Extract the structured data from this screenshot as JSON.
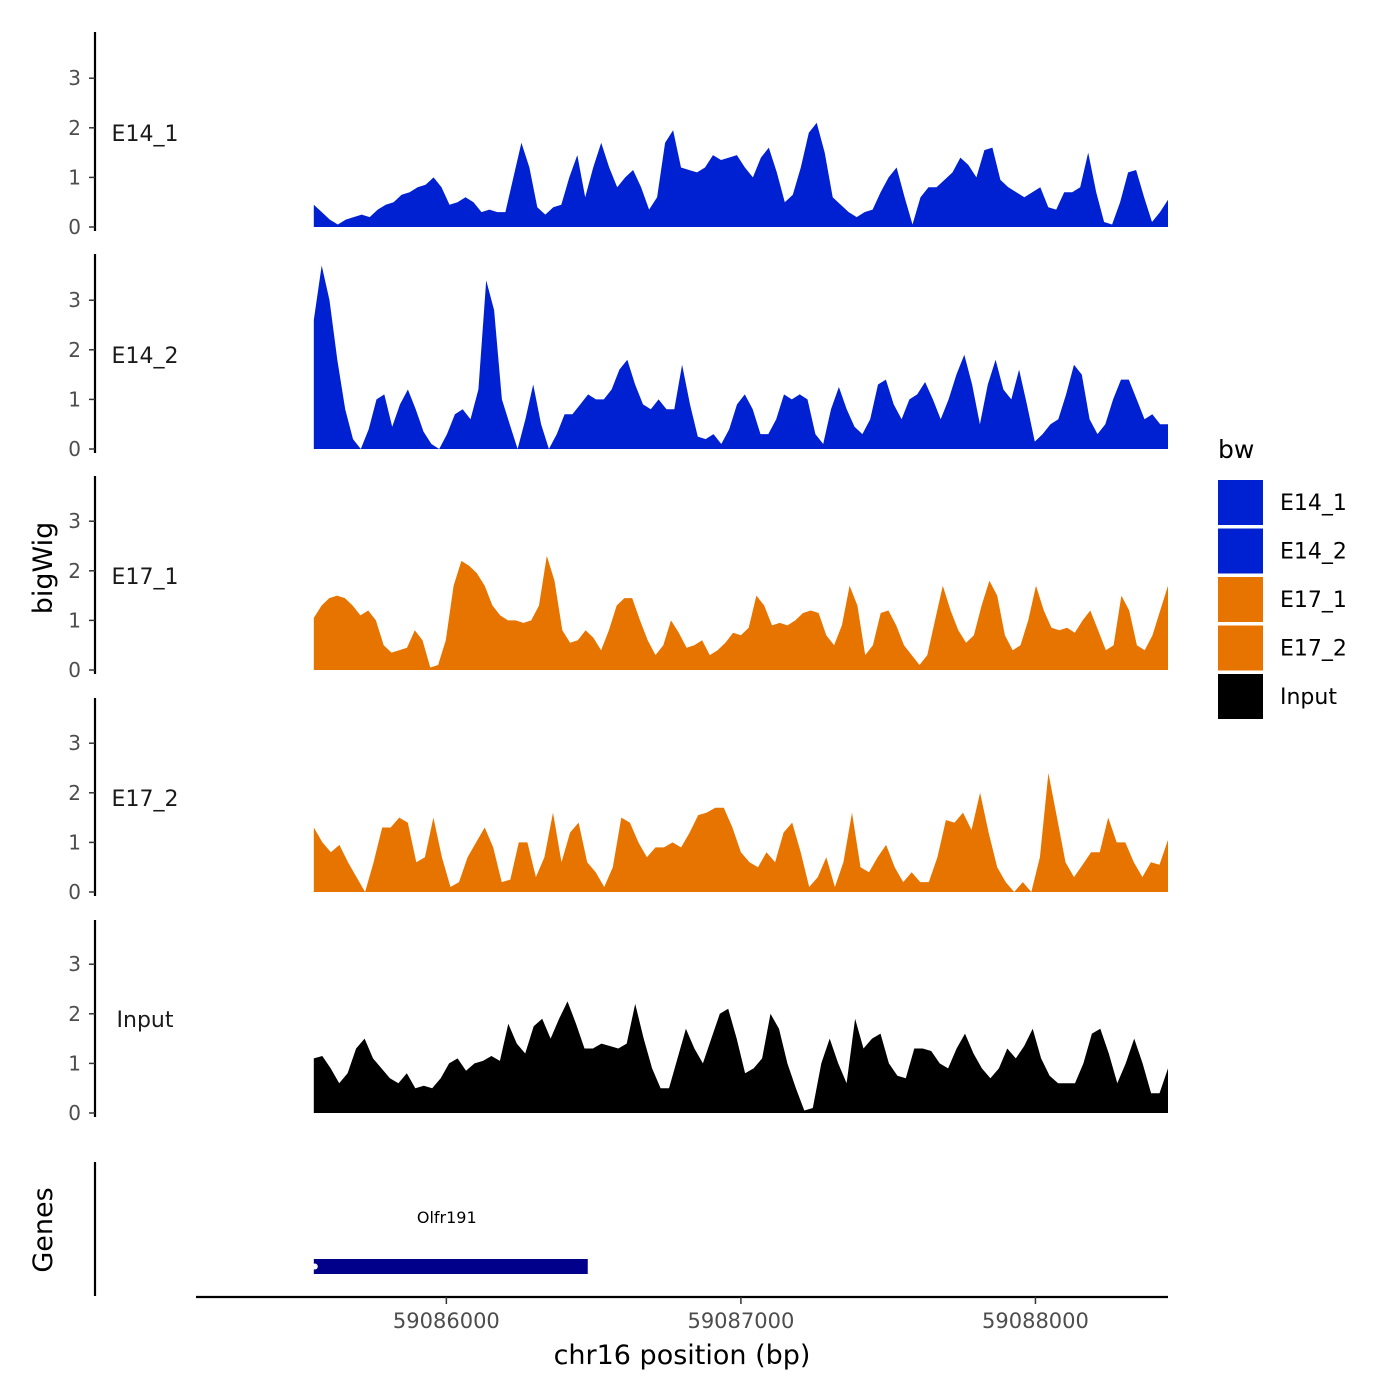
{
  "chart_data": {
    "type": "area",
    "title": "",
    "ylabel": "bigWig",
    "xlabel": "chr16 position (bp)",
    "x_range": [
      59085550,
      59088450
    ],
    "xlim": [
      59085150,
      59088450
    ],
    "ylim": [
      0,
      3.9
    ],
    "y_ticks": [
      "0",
      "1",
      "2",
      "3"
    ],
    "x_ticks": [
      {
        "value": 59086000,
        "label": "59086000"
      },
      {
        "value": 59087000,
        "label": "59087000"
      },
      {
        "value": 59088000,
        "label": "59088000"
      }
    ],
    "legend": {
      "title": "bw",
      "position": "right",
      "entries": [
        {
          "label": "E14_1",
          "color": "#0021d1"
        },
        {
          "label": "E14_2",
          "color": "#0021d1"
        },
        {
          "label": "E17_1",
          "color": "#e87400"
        },
        {
          "label": "E17_2",
          "color": "#e87400"
        },
        {
          "label": "Input",
          "color": "#000000"
        }
      ]
    },
    "series": [
      {
        "name": "E14_1",
        "color": "#0021d1",
        "values": [
          0.45,
          0.3,
          0.15,
          0.05,
          0.15,
          0.2,
          0.25,
          0.2,
          0.35,
          0.45,
          0.5,
          0.65,
          0.7,
          0.8,
          0.85,
          1.0,
          0.8,
          0.45,
          0.5,
          0.6,
          0.5,
          0.3,
          0.35,
          0.3,
          0.3,
          1.0,
          1.7,
          1.2,
          0.4,
          0.25,
          0.4,
          0.45,
          1.0,
          1.45,
          0.6,
          1.2,
          1.7,
          1.2,
          0.8,
          1.0,
          1.15,
          0.8,
          0.35,
          0.6,
          1.7,
          1.95,
          1.2,
          1.15,
          1.1,
          1.2,
          1.45,
          1.35,
          1.4,
          1.45,
          1.2,
          1.0,
          1.4,
          1.6,
          1.1,
          0.5,
          0.65,
          1.2,
          1.9,
          2.1,
          1.5,
          0.6,
          0.45,
          0.3,
          0.2,
          0.3,
          0.35,
          0.7,
          1.0,
          1.2,
          0.6,
          0.05,
          0.6,
          0.8,
          0.8,
          0.95,
          1.1,
          1.4,
          1.25,
          1.0,
          1.55,
          1.6,
          0.95,
          0.8,
          0.7,
          0.6,
          0.7,
          0.8,
          0.4,
          0.35,
          0.7,
          0.7,
          0.8,
          1.5,
          0.7,
          0.1,
          0.05,
          0.5,
          1.1,
          1.15,
          0.6,
          0.1,
          0.3,
          0.55
        ]
      },
      {
        "name": "E14_2",
        "color": "#0021d1",
        "values": [
          2.6,
          3.7,
          3.0,
          1.8,
          0.8,
          0.2,
          0.0,
          0.4,
          1.0,
          1.1,
          0.45,
          0.9,
          1.2,
          0.8,
          0.35,
          0.1,
          0.0,
          0.3,
          0.7,
          0.8,
          0.6,
          1.2,
          3.4,
          2.8,
          1.0,
          0.5,
          0.0,
          0.6,
          1.3,
          0.5,
          0.0,
          0.3,
          0.7,
          0.7,
          0.9,
          1.1,
          1.0,
          1.0,
          1.2,
          1.6,
          1.8,
          1.3,
          0.9,
          0.8,
          1.0,
          0.8,
          0.8,
          1.7,
          0.9,
          0.25,
          0.2,
          0.3,
          0.1,
          0.4,
          0.9,
          1.1,
          0.8,
          0.3,
          0.3,
          0.6,
          1.1,
          1.0,
          1.1,
          1.0,
          0.3,
          0.1,
          0.8,
          1.25,
          0.8,
          0.45,
          0.3,
          0.6,
          1.3,
          1.4,
          0.9,
          0.6,
          1.0,
          1.1,
          1.35,
          1.0,
          0.6,
          1.0,
          1.5,
          1.9,
          1.3,
          0.5,
          1.3,
          1.8,
          1.2,
          1.0,
          1.6,
          0.9,
          0.15,
          0.3,
          0.5,
          0.6,
          1.1,
          1.7,
          1.5,
          0.6,
          0.3,
          0.5,
          1.0,
          1.4,
          1.4,
          1.0,
          0.6,
          0.7,
          0.5,
          0.5
        ]
      },
      {
        "name": "E17_1",
        "color": "#e87400",
        "values": [
          1.05,
          1.3,
          1.45,
          1.5,
          1.45,
          1.3,
          1.1,
          1.2,
          1.0,
          0.5,
          0.35,
          0.4,
          0.45,
          0.8,
          0.6,
          0.05,
          0.1,
          0.6,
          1.7,
          2.2,
          2.1,
          1.95,
          1.7,
          1.3,
          1.1,
          1.0,
          1.0,
          0.95,
          1.0,
          1.3,
          2.3,
          1.8,
          0.8,
          0.55,
          0.6,
          0.8,
          0.65,
          0.4,
          0.8,
          1.3,
          1.45,
          1.45,
          1.0,
          0.6,
          0.3,
          0.5,
          1.0,
          0.75,
          0.45,
          0.5,
          0.6,
          0.3,
          0.4,
          0.55,
          0.75,
          0.7,
          0.85,
          1.5,
          1.3,
          0.9,
          0.95,
          0.9,
          1.0,
          1.15,
          1.2,
          1.15,
          0.7,
          0.5,
          0.9,
          1.7,
          1.3,
          0.3,
          0.5,
          1.15,
          1.2,
          0.9,
          0.5,
          0.3,
          0.1,
          0.3,
          1.0,
          1.7,
          1.2,
          0.8,
          0.55,
          0.7,
          1.3,
          1.8,
          1.5,
          0.7,
          0.4,
          0.5,
          1.0,
          1.7,
          1.2,
          0.85,
          0.8,
          0.85,
          0.75,
          1.0,
          1.2,
          0.8,
          0.4,
          0.5,
          1.5,
          1.2,
          0.5,
          0.4,
          0.7,
          1.2,
          1.7
        ]
      },
      {
        "name": "E17_2",
        "color": "#e87400",
        "values": [
          1.3,
          1.0,
          0.8,
          0.95,
          0.6,
          0.3,
          0.0,
          0.6,
          1.3,
          1.3,
          1.5,
          1.4,
          0.6,
          0.7,
          1.5,
          0.7,
          0.1,
          0.2,
          0.7,
          1.0,
          1.3,
          0.9,
          0.2,
          0.25,
          1.0,
          1.0,
          0.3,
          0.7,
          1.6,
          0.6,
          1.2,
          1.4,
          0.6,
          0.4,
          0.1,
          0.5,
          1.5,
          1.4,
          1.0,
          0.7,
          0.9,
          0.9,
          1.0,
          0.9,
          1.2,
          1.55,
          1.6,
          1.7,
          1.7,
          1.3,
          0.8,
          0.6,
          0.5,
          0.8,
          0.6,
          1.2,
          1.4,
          0.8,
          0.1,
          0.3,
          0.7,
          0.1,
          0.6,
          1.6,
          0.5,
          0.4,
          0.7,
          0.95,
          0.5,
          0.2,
          0.4,
          0.2,
          0.2,
          0.7,
          1.45,
          1.4,
          1.6,
          1.25,
          2.0,
          1.2,
          0.5,
          0.2,
          0.0,
          0.2,
          0.0,
          0.7,
          2.4,
          1.5,
          0.6,
          0.3,
          0.55,
          0.8,
          0.8,
          1.5,
          1.0,
          1.0,
          0.6,
          0.3,
          0.6,
          0.55,
          1.05
        ]
      },
      {
        "name": "Input",
        "color": "#000000",
        "values": [
          1.1,
          1.15,
          0.9,
          0.6,
          0.8,
          1.3,
          1.5,
          1.1,
          0.9,
          0.7,
          0.6,
          0.8,
          0.5,
          0.55,
          0.5,
          0.7,
          1.0,
          1.1,
          0.85,
          1.0,
          1.05,
          1.15,
          1.05,
          1.8,
          1.4,
          1.2,
          1.75,
          1.9,
          1.5,
          1.9,
          2.25,
          1.8,
          1.3,
          1.3,
          1.4,
          1.35,
          1.3,
          1.4,
          2.2,
          1.5,
          0.9,
          0.5,
          0.5,
          1.1,
          1.7,
          1.3,
          1.0,
          1.5,
          2.0,
          2.1,
          1.5,
          0.8,
          0.9,
          1.1,
          2.0,
          1.7,
          1.0,
          0.5,
          0.05,
          0.1,
          1.0,
          1.5,
          1.0,
          0.6,
          1.9,
          1.3,
          1.5,
          1.6,
          1.0,
          0.75,
          0.7,
          1.3,
          1.3,
          1.25,
          1.0,
          0.9,
          1.3,
          1.6,
          1.2,
          0.9,
          0.7,
          0.9,
          1.3,
          1.1,
          1.35,
          1.7,
          1.1,
          0.75,
          0.6,
          0.6,
          0.6,
          1.0,
          1.6,
          1.7,
          1.2,
          0.6,
          1.0,
          1.5,
          1.0,
          0.4,
          0.4,
          0.9
        ]
      }
    ],
    "genes": {
      "label": "Genes",
      "items": [
        {
          "name": "Olfr191",
          "start": 59085550,
          "end": 59086480,
          "color": "#00008b"
        }
      ]
    }
  }
}
